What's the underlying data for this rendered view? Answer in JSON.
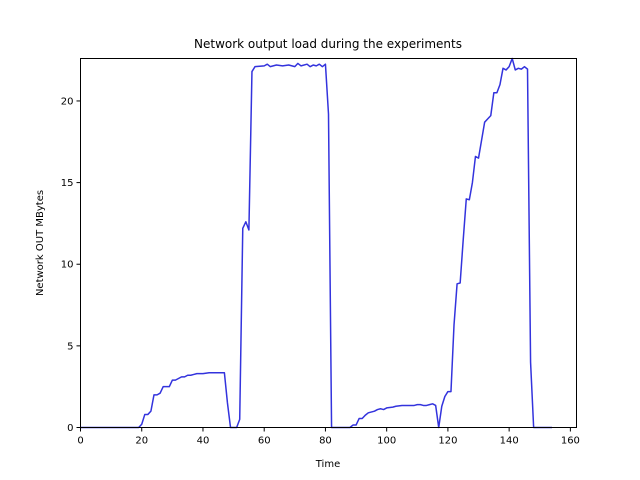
{
  "chart_data": {
    "type": "line",
    "title": "Network output load during the experiments",
    "xlabel": "Time",
    "ylabel": "Network OUT MBytes",
    "xlim": [
      0,
      162
    ],
    "ylim": [
      0,
      22.6
    ],
    "x_ticks": [
      0,
      20,
      40,
      60,
      80,
      100,
      120,
      140,
      160
    ],
    "y_ticks": [
      0,
      5,
      10,
      15,
      20
    ],
    "grid": false,
    "legend": "none",
    "series": [
      {
        "color": "#3333dd",
        "points": [
          [
            0,
            0
          ],
          [
            19,
            0
          ],
          [
            20,
            0.2
          ],
          [
            21,
            0.8
          ],
          [
            22,
            0.8
          ],
          [
            23,
            1.0
          ],
          [
            24,
            2.0
          ],
          [
            25,
            2.0
          ],
          [
            26,
            2.1
          ],
          [
            27,
            2.5
          ],
          [
            28,
            2.5
          ],
          [
            29,
            2.5
          ],
          [
            30,
            2.9
          ],
          [
            31,
            2.9
          ],
          [
            32,
            3.0
          ],
          [
            33,
            3.1
          ],
          [
            34,
            3.1
          ],
          [
            35,
            3.2
          ],
          [
            36,
            3.2
          ],
          [
            37,
            3.25
          ],
          [
            38,
            3.3
          ],
          [
            40,
            3.3
          ],
          [
            42,
            3.35
          ],
          [
            44,
            3.35
          ],
          [
            46,
            3.35
          ],
          [
            47,
            3.35
          ],
          [
            48,
            1.5
          ],
          [
            49,
            0
          ],
          [
            50,
            0
          ],
          [
            51,
            0
          ],
          [
            52,
            0.5
          ],
          [
            53,
            12.2
          ],
          [
            54,
            12.6
          ],
          [
            55,
            12.1
          ],
          [
            56,
            21.8
          ],
          [
            57,
            22.1
          ],
          [
            60,
            22.15
          ],
          [
            61,
            22.25
          ],
          [
            62,
            22.1
          ],
          [
            64,
            22.2
          ],
          [
            66,
            22.15
          ],
          [
            68,
            22.2
          ],
          [
            70,
            22.1
          ],
          [
            71,
            22.3
          ],
          [
            72,
            22.15
          ],
          [
            74,
            22.25
          ],
          [
            75,
            22.1
          ],
          [
            76,
            22.2
          ],
          [
            77,
            22.15
          ],
          [
            78,
            22.25
          ],
          [
            79,
            22.1
          ],
          [
            80,
            22.25
          ],
          [
            81,
            19.2
          ],
          [
            82,
            0
          ],
          [
            88,
            0
          ],
          [
            89,
            0.15
          ],
          [
            90,
            0.15
          ],
          [
            91,
            0.55
          ],
          [
            92,
            0.55
          ],
          [
            93,
            0.75
          ],
          [
            94,
            0.9
          ],
          [
            96,
            1.0
          ],
          [
            97,
            1.1
          ],
          [
            98,
            1.15
          ],
          [
            99,
            1.1
          ],
          [
            100,
            1.2
          ],
          [
            102,
            1.25
          ],
          [
            103,
            1.3
          ],
          [
            105,
            1.35
          ],
          [
            107,
            1.35
          ],
          [
            109,
            1.35
          ],
          [
            110,
            1.4
          ],
          [
            111,
            1.4
          ],
          [
            112,
            1.35
          ],
          [
            113,
            1.35
          ],
          [
            114,
            1.4
          ],
          [
            115,
            1.45
          ],
          [
            116,
            1.35
          ],
          [
            117,
            0
          ],
          [
            118,
            1.3
          ],
          [
            119,
            1.9
          ],
          [
            120,
            2.2
          ],
          [
            121,
            2.2
          ],
          [
            122,
            6.3
          ],
          [
            123,
            8.8
          ],
          [
            124,
            8.85
          ],
          [
            125,
            11.5
          ],
          [
            126,
            14.0
          ],
          [
            127,
            13.95
          ],
          [
            128,
            15.0
          ],
          [
            129,
            16.6
          ],
          [
            130,
            16.5
          ],
          [
            131,
            17.6
          ],
          [
            132,
            18.7
          ],
          [
            133,
            18.9
          ],
          [
            134,
            19.1
          ],
          [
            135,
            20.5
          ],
          [
            136,
            20.5
          ],
          [
            137,
            21.0
          ],
          [
            138,
            22.0
          ],
          [
            139,
            21.9
          ],
          [
            140,
            22.1
          ],
          [
            141,
            22.6
          ],
          [
            142,
            21.9
          ],
          [
            143,
            22.0
          ],
          [
            144,
            21.95
          ],
          [
            145,
            22.1
          ],
          [
            146,
            21.95
          ],
          [
            147,
            4.0
          ],
          [
            148,
            0
          ],
          [
            154,
            0
          ]
        ]
      }
    ]
  }
}
